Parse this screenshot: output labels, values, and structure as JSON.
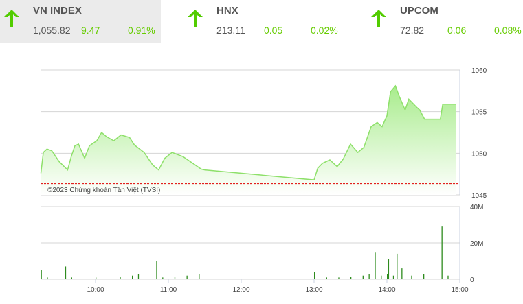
{
  "indices": [
    {
      "name": "VN INDEX",
      "value": "1,055.82",
      "change": "9.47",
      "percent": "0.91%",
      "direction": "up",
      "icon": "arrow-up-icon"
    },
    {
      "name": "HNX",
      "value": "213.11",
      "change": "0.05",
      "percent": "0.02%",
      "direction": "up",
      "icon": "arrow-up-icon"
    },
    {
      "name": "UPCOM",
      "value": "72.82",
      "change": "0.06",
      "percent": "0.08%",
      "direction": "up",
      "icon": "arrow-up-icon"
    }
  ],
  "colors": {
    "up": "#66cc00",
    "line": "#8ee06a",
    "reference": "#e00000",
    "active_tile": "#ebebeb"
  },
  "chart_data": [
    {
      "type": "area",
      "title": "",
      "watermark": "©2023 Chứng khoán Tân Việt (TVSI)",
      "ylim": [
        1045,
        1060
      ],
      "yticks": [
        "1045",
        "1050",
        "1055",
        "1060"
      ],
      "reference": 1046.35,
      "grid": true,
      "points": [
        [
          "9:15",
          1047.6
        ],
        [
          "9:17",
          1050.1
        ],
        [
          "9:20",
          1050.5
        ],
        [
          "9:24",
          1050.3
        ],
        [
          "9:30",
          1049
        ],
        [
          "9:37",
          1048
        ],
        [
          "9:40",
          1049.6
        ],
        [
          "9:43",
          1050.9
        ],
        [
          "9:46",
          1051.1
        ],
        [
          "9:51",
          1049.4
        ],
        [
          "9:55",
          1050.9
        ],
        [
          "10:01",
          1051.5
        ],
        [
          "10:05",
          1052.5
        ],
        [
          "10:09",
          1052
        ],
        [
          "10:15",
          1051.5
        ],
        [
          "10:21",
          1052.2
        ],
        [
          "10:28",
          1051.9
        ],
        [
          "10:32",
          1051
        ],
        [
          "10:40",
          1050.1
        ],
        [
          "10:47",
          1048.6
        ],
        [
          "10:52",
          1048
        ],
        [
          "10:57",
          1049.4
        ],
        [
          "11:03",
          1050.1
        ],
        [
          "11:12",
          1049.6
        ],
        [
          "11:20",
          1048.8
        ],
        [
          "11:27",
          1048.1
        ],
        [
          "11:30",
          1048
        ],
        [
          "13:00",
          1046.8
        ],
        [
          "13:03",
          1048.2
        ],
        [
          "13:07",
          1048.8
        ],
        [
          "13:13",
          1049.2
        ],
        [
          "13:19",
          1048.4
        ],
        [
          "13:24",
          1049.3
        ],
        [
          "13:30",
          1051.1
        ],
        [
          "13:36",
          1050.1
        ],
        [
          "13:41",
          1050.7
        ],
        [
          "13:47",
          1053.2
        ],
        [
          "13:52",
          1053.7
        ],
        [
          "13:56",
          1053.2
        ],
        [
          "14:00",
          1054.5
        ],
        [
          "14:03",
          1057.4
        ],
        [
          "14:07",
          1058.1
        ],
        [
          "14:10",
          1056.9
        ],
        [
          "14:15",
          1055.2
        ],
        [
          "14:18",
          1056.5
        ],
        [
          "14:24",
          1055.6
        ],
        [
          "14:27",
          1055.2
        ],
        [
          "14:31",
          1054.1
        ],
        [
          "14:44",
          1054.1
        ],
        [
          "14:46",
          1055.9
        ],
        [
          "14:57",
          1055.9
        ]
      ]
    },
    {
      "type": "bar",
      "title": "",
      "ylim": [
        0,
        40
      ],
      "yticks": [
        "0",
        "20M",
        "40M"
      ],
      "xticks": [
        "10:00",
        "11:00",
        "12:00",
        "13:00",
        "14:00",
        "15:00"
      ],
      "unit": "M",
      "bars": [
        [
          "9:15",
          5
        ],
        [
          "9:20",
          1
        ],
        [
          "9:35",
          7
        ],
        [
          "9:40",
          1
        ],
        [
          "10:00",
          1
        ],
        [
          "10:20",
          1.5
        ],
        [
          "10:30",
          2
        ],
        [
          "10:35",
          3
        ],
        [
          "10:50",
          10
        ],
        [
          "10:55",
          1
        ],
        [
          "11:05",
          1.5
        ],
        [
          "11:15",
          2
        ],
        [
          "11:25",
          3
        ],
        [
          "13:00",
          4
        ],
        [
          "13:10",
          1
        ],
        [
          "13:20",
          1
        ],
        [
          "13:30",
          1.5
        ],
        [
          "13:40",
          2
        ],
        [
          "13:45",
          3
        ],
        [
          "13:50",
          15
        ],
        [
          "13:55",
          2
        ],
        [
          "14:00",
          3
        ],
        [
          "14:01",
          11
        ],
        [
          "14:05",
          2
        ],
        [
          "14:08",
          14
        ],
        [
          "14:12",
          6
        ],
        [
          "14:20",
          2
        ],
        [
          "14:30",
          3
        ],
        [
          "14:45",
          29
        ],
        [
          "14:50",
          2
        ]
      ]
    }
  ]
}
